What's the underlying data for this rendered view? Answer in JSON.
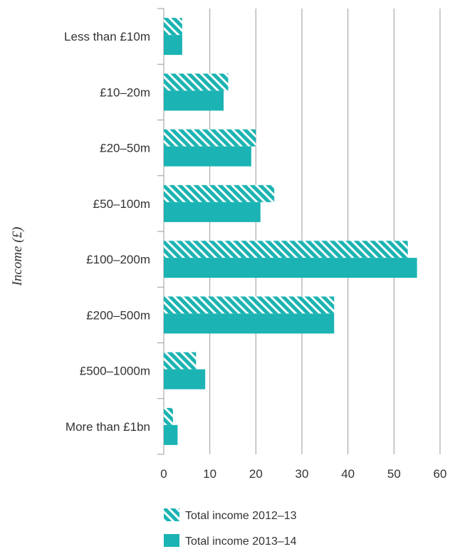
{
  "chart_data": {
    "type": "bar",
    "orientation": "horizontal",
    "ylabel": "Income (£)",
    "xlabel": "",
    "categories": [
      "Less than £10m",
      "£10–20m",
      "£20–50m",
      "£50–100m",
      "£100–200m",
      "£200–500m",
      "£500–1000m",
      "More than £1bn"
    ],
    "series": [
      {
        "name": "Total income 2012–13",
        "pattern": "hatched",
        "color": "#1bb3b3",
        "values": [
          4,
          14,
          20,
          24,
          53,
          37,
          7,
          2
        ]
      },
      {
        "name": "Total income 2013–14",
        "pattern": "solid",
        "color": "#1bb3b3",
        "values": [
          4,
          13,
          19,
          21,
          55,
          37,
          9,
          3
        ]
      }
    ],
    "xlim": [
      0,
      60
    ],
    "xticks": [
      0,
      10,
      20,
      30,
      40,
      50,
      60
    ],
    "grid": true,
    "legend_position": "bottom"
  }
}
